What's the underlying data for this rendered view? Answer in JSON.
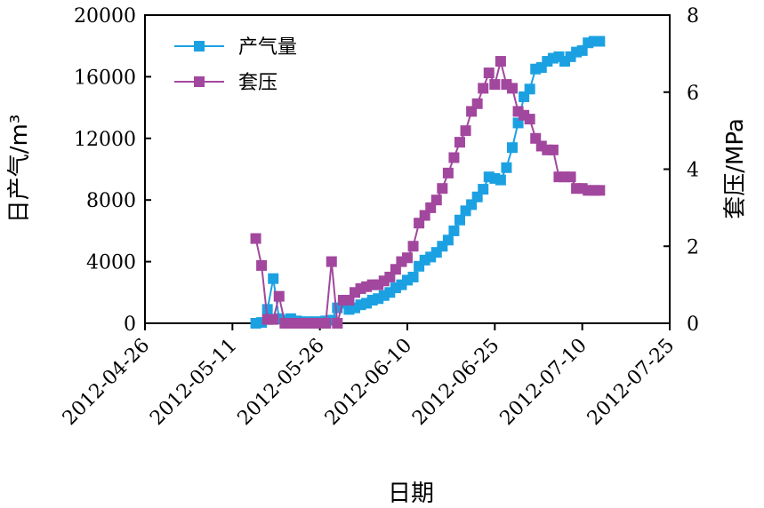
{
  "chart_data": {
    "type": "line",
    "xlabel": "日期",
    "ylabel_left": "日产气/m³",
    "ylabel_right": "套压/MPa",
    "x_range": [
      "2012-04-26",
      "2012-07-25"
    ],
    "x_ticks": [
      "2012-04-26",
      "2012-05-11",
      "2012-05-26",
      "2012-06-10",
      "2012-06-25",
      "2012-07-10",
      "2012-07-25"
    ],
    "y_left_range": [
      0,
      20000
    ],
    "y_left_ticks": [
      "0",
      "4000",
      "8000",
      "12000",
      "16000",
      "20000"
    ],
    "y_right_range": [
      0,
      8
    ],
    "y_right_ticks": [
      "0",
      "2",
      "4",
      "6",
      "8"
    ],
    "grid": false,
    "legend_position": "top-left",
    "colors": {
      "gas": "#1BA1E2",
      "pressure": "#A2479E"
    },
    "series": [
      {
        "name": "产气量",
        "axis": "left",
        "color": "#1BA1E2",
        "x": [
          "2012-05-15",
          "2012-05-16",
          "2012-05-17",
          "2012-05-18",
          "2012-05-19",
          "2012-05-20",
          "2012-05-21",
          "2012-05-22",
          "2012-05-23",
          "2012-05-24",
          "2012-05-25",
          "2012-05-26",
          "2012-05-27",
          "2012-05-28",
          "2012-05-29",
          "2012-05-30",
          "2012-05-31",
          "2012-06-01",
          "2012-06-02",
          "2012-06-03",
          "2012-06-04",
          "2012-06-05",
          "2012-06-06",
          "2012-06-07",
          "2012-06-08",
          "2012-06-09",
          "2012-06-10",
          "2012-06-11",
          "2012-06-12",
          "2012-06-13",
          "2012-06-14",
          "2012-06-15",
          "2012-06-16",
          "2012-06-17",
          "2012-06-18",
          "2012-06-19",
          "2012-06-20",
          "2012-06-21",
          "2012-06-22",
          "2012-06-23",
          "2012-06-24",
          "2012-06-25",
          "2012-06-26",
          "2012-06-27",
          "2012-06-28",
          "2012-06-29",
          "2012-06-30",
          "2012-07-01",
          "2012-07-02",
          "2012-07-03",
          "2012-07-04",
          "2012-07-05",
          "2012-07-06",
          "2012-07-07",
          "2012-07-08",
          "2012-07-09",
          "2012-07-10",
          "2012-07-11",
          "2012-07-12",
          "2012-07-13"
        ],
        "values": [
          0,
          50,
          900,
          2900,
          300,
          200,
          300,
          150,
          100,
          100,
          100,
          100,
          150,
          200,
          1000,
          1300,
          900,
          1000,
          1200,
          1300,
          1500,
          1600,
          1800,
          2000,
          2300,
          2500,
          2800,
          3000,
          3700,
          4100,
          4300,
          4600,
          5000,
          5400,
          6000,
          6700,
          7300,
          7700,
          8200,
          8700,
          9500,
          9400,
          9300,
          10100,
          11400,
          13000,
          14700,
          15200,
          16500,
          16600,
          17000,
          17200,
          17300,
          17000,
          17300,
          17600,
          17700,
          18200,
          18300,
          18300
        ]
      },
      {
        "name": "套压",
        "axis": "right",
        "color": "#A2479E",
        "x": [
          "2012-05-15",
          "2012-05-16",
          "2012-05-17",
          "2012-05-18",
          "2012-05-19",
          "2012-05-20",
          "2012-05-21",
          "2012-05-22",
          "2012-05-23",
          "2012-05-24",
          "2012-05-25",
          "2012-05-26",
          "2012-05-27",
          "2012-05-28",
          "2012-05-29",
          "2012-05-30",
          "2012-05-31",
          "2012-06-01",
          "2012-06-02",
          "2012-06-03",
          "2012-06-04",
          "2012-06-05",
          "2012-06-06",
          "2012-06-07",
          "2012-06-08",
          "2012-06-09",
          "2012-06-10",
          "2012-06-11",
          "2012-06-12",
          "2012-06-13",
          "2012-06-14",
          "2012-06-15",
          "2012-06-16",
          "2012-06-17",
          "2012-06-18",
          "2012-06-19",
          "2012-06-20",
          "2012-06-21",
          "2012-06-22",
          "2012-06-23",
          "2012-06-24",
          "2012-06-25",
          "2012-06-26",
          "2012-06-27",
          "2012-06-28",
          "2012-06-29",
          "2012-06-30",
          "2012-07-01",
          "2012-07-02",
          "2012-07-03",
          "2012-07-04",
          "2012-07-05",
          "2012-07-06",
          "2012-07-07",
          "2012-07-08",
          "2012-07-09",
          "2012-07-10",
          "2012-07-11",
          "2012-07-12",
          "2012-07-13"
        ],
        "values": [
          2.2,
          1.5,
          0.1,
          0.1,
          0.7,
          0.0,
          0.0,
          0.0,
          0.0,
          0.0,
          0.0,
          0.0,
          0.0,
          1.6,
          0.0,
          0.6,
          0.6,
          0.8,
          0.9,
          0.95,
          1.0,
          1.0,
          1.1,
          1.2,
          1.4,
          1.6,
          1.7,
          2.0,
          2.6,
          2.8,
          3.0,
          3.2,
          3.5,
          3.9,
          4.3,
          4.7,
          5.0,
          5.5,
          5.7,
          6.1,
          6.5,
          6.2,
          6.8,
          6.2,
          6.1,
          5.5,
          5.4,
          5.3,
          4.8,
          4.6,
          4.5,
          4.5,
          3.8,
          3.8,
          3.8,
          3.5,
          3.5,
          3.45,
          3.45,
          3.45
        ]
      }
    ]
  }
}
